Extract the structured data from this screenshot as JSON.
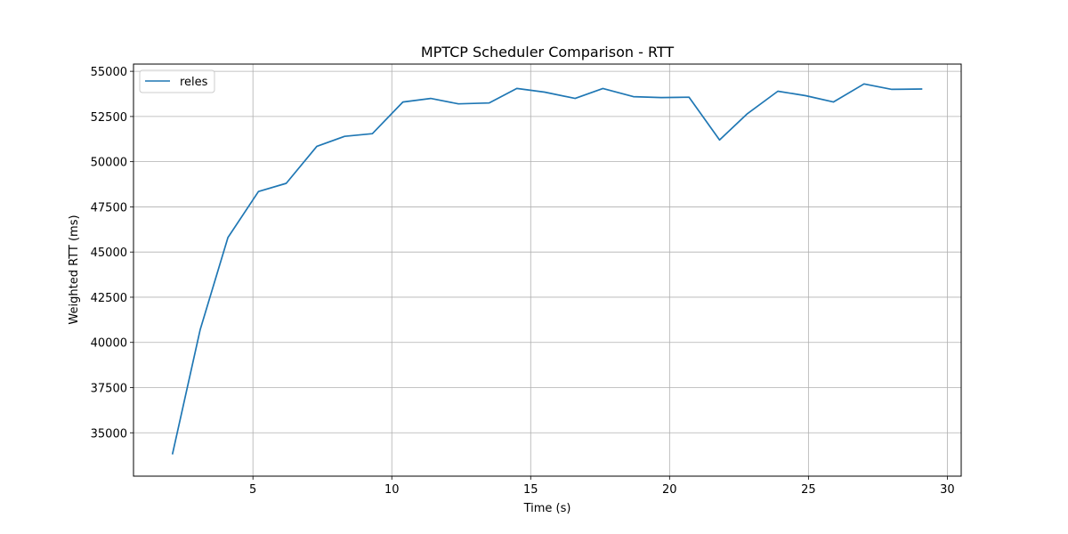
{
  "chart_data": {
    "type": "line",
    "title": "MPTCP Scheduler Comparison - RTT",
    "xlabel": "Time (s)",
    "ylabel": "Weighted RTT (ms)",
    "xlim": [
      0.7,
      30.5
    ],
    "ylim": [
      32600,
      55400
    ],
    "x_ticks": [
      5,
      10,
      15,
      20,
      25,
      30
    ],
    "y_ticks": [
      35000,
      37500,
      40000,
      42500,
      45000,
      47500,
      50000,
      52500,
      55000
    ],
    "grid": true,
    "legend_position": "top-left",
    "series": [
      {
        "name": "reles",
        "color": "#1f77b4",
        "x": [
          2.1,
          3.1,
          4.1,
          5.2,
          6.2,
          7.3,
          8.3,
          9.3,
          10.4,
          11.4,
          12.4,
          13.5,
          14.5,
          15.5,
          16.6,
          17.6,
          18.7,
          19.7,
          20.7,
          21.8,
          22.8,
          23.9,
          24.9,
          25.9,
          27.0,
          28.0,
          29.1
        ],
        "y": [
          33800,
          40700,
          45800,
          48350,
          48800,
          50850,
          51400,
          51550,
          53300,
          53500,
          53200,
          53250,
          54050,
          53850,
          53500,
          54050,
          53600,
          53550,
          53570,
          51200,
          52650,
          53900,
          53650,
          53300,
          54300,
          54000,
          54020
        ]
      }
    ]
  }
}
